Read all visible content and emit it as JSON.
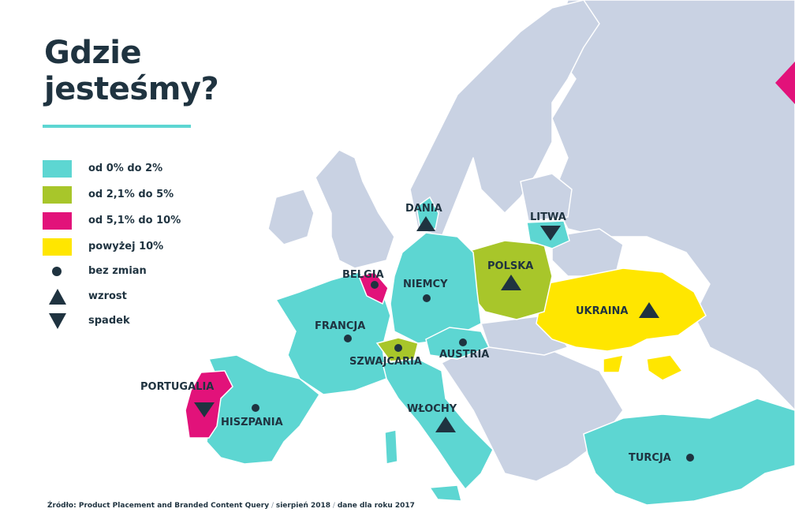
{
  "title": {
    "line1": "Gdzie",
    "line2": "jesteśmy?"
  },
  "colors": {
    "base_land": "#c9d2e3",
    "category_0_2": "#5dd6d2",
    "category_2_5": "#a8c62a",
    "category_5_10": "#e2127a",
    "category_over_10": "#ffe600",
    "text": "#1f3340"
  },
  "legend": {
    "color_items": [
      {
        "label": "od 0% do 2%",
        "color": "#5dd6d2"
      },
      {
        "label": "od 2,1% do 5%",
        "color": "#a8c62a"
      },
      {
        "label": "od 5,1% do 10%",
        "color": "#e2127a"
      },
      {
        "label": "powyżej 10%",
        "color": "#ffe600"
      }
    ],
    "symbol_items": [
      {
        "label": "bez zmian",
        "icon": "dot-icon"
      },
      {
        "label": "wzrost",
        "icon": "triangle-up-icon"
      },
      {
        "label": "spadek",
        "icon": "triangle-down-icon"
      }
    ]
  },
  "countries": {
    "dania": {
      "name": "DANIA",
      "trend": "wzrost",
      "category": "od 0% do 2%"
    },
    "litwa": {
      "name": "LITWA",
      "trend": "spadek",
      "category": "od 0% do 2%"
    },
    "polska": {
      "name": "POLSKA",
      "trend": "wzrost",
      "category": "od 2,1% do 5%"
    },
    "belgia": {
      "name": "BELGIA",
      "trend": "bez zmian",
      "category": "od 5,1% do 10%"
    },
    "niemcy": {
      "name": "NIEMCY",
      "trend": "bez zmian",
      "category": "od 0% do 2%"
    },
    "ukraina": {
      "name": "UKRAINA",
      "trend": "wzrost",
      "category": "powyżej 10%"
    },
    "francja": {
      "name": "FRANCJA",
      "trend": "bez zmian",
      "category": "od 0% do 2%"
    },
    "austria": {
      "name": "AUSTRIA",
      "trend": "bez zmian",
      "category": "od 0% do 2%"
    },
    "szwajcaria": {
      "name": "SZWAJCARIA",
      "trend": "bez zmian",
      "category": "od 2,1% do 5%"
    },
    "portugalia": {
      "name": "PORTUGALIA",
      "trend": "spadek",
      "category": "od 5,1% do 10%"
    },
    "hiszpania": {
      "name": "HISZPANIA",
      "trend": "bez zmian",
      "category": "od 0% do 2%"
    },
    "wlochy": {
      "name": "WŁOCHY",
      "trend": "wzrost",
      "category": "od 0% do 2%"
    },
    "turcja": {
      "name": "TURCJA",
      "trend": "bez zmian",
      "category": "od 0% do 2%"
    }
  },
  "footer": {
    "source": "Źródło: Product Placement and Branded Content Query",
    "separator": " / ",
    "date": "sierpień 2018",
    "note": "dane dla roku 2017"
  }
}
